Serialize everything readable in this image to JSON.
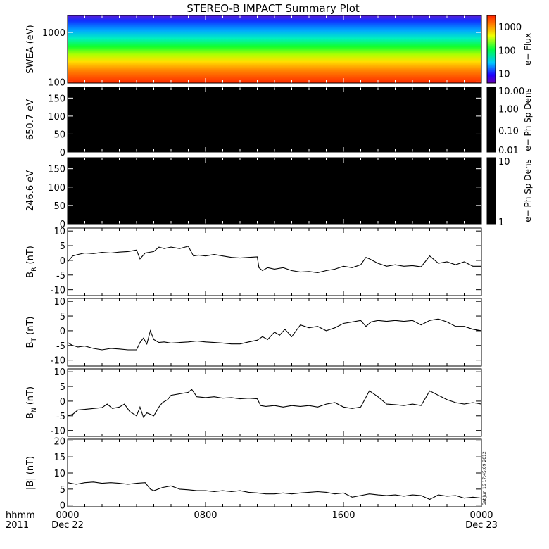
{
  "title": "STEREO-B IMPACT Summary Plot",
  "x_axis": {
    "corner_top": "hhmm",
    "corner_bottom": "2011",
    "tick_labels": [
      "0000",
      "0800",
      "1600",
      "0000"
    ],
    "date_labels": [
      "Dec 22",
      "Dec 23"
    ]
  },
  "timestamp": "Sat Jun 16 17:45:09 2012",
  "chart_data": [
    {
      "id": "swea",
      "type": "heatmap",
      "ylabel": "SWEA (eV)",
      "yscale": "log",
      "ylim": [
        95,
        2200
      ],
      "ytick_labels": [
        "1000",
        "100"
      ],
      "ytick_values": [
        1000,
        100
      ],
      "colorbar": {
        "label": "e− Flux",
        "scale": "log",
        "range": [
          4,
          3000
        ],
        "tick_labels": [
          "1000",
          "100",
          "10"
        ],
        "tick_values": [
          1000,
          100,
          10
        ]
      }
    },
    {
      "id": "pad_650",
      "type": "heatmap",
      "ylabel": "650.7 eV",
      "ylim": [
        0,
        180
      ],
      "ytick_labels": [
        "150",
        "100",
        "50",
        "0"
      ],
      "ytick_values": [
        150,
        100,
        50,
        0
      ],
      "colorbar": {
        "label": "e− Ph Sp Dens",
        "scale": "log",
        "range": [
          0.01,
          10
        ],
        "tick_labels": [
          "10.00",
          "1.00",
          "0.10",
          "0.01"
        ],
        "tick_values": [
          10,
          1,
          0.1,
          0.01
        ]
      }
    },
    {
      "id": "pad_246",
      "type": "heatmap",
      "ylabel": "246.6 eV",
      "ylim": [
        0,
        180
      ],
      "ytick_labels": [
        "150",
        "100",
        "50",
        "0"
      ],
      "ytick_values": [
        150,
        100,
        50,
        0
      ],
      "colorbar": {
        "label": "e− Ph Sp Dens",
        "scale": "log",
        "range": [
          1,
          10
        ],
        "tick_labels": [
          "10",
          "1"
        ],
        "tick_values": [
          10,
          1
        ]
      }
    },
    {
      "id": "br",
      "type": "line",
      "ylabel_main": "B",
      "ylabel_sub": "R",
      "ylabel_unit": " (nT)",
      "ylim": [
        -12,
        11
      ],
      "ytick_labels": [
        "10",
        "5",
        "0",
        "-5",
        "-10"
      ],
      "ytick_values": [
        10,
        5,
        0,
        -5,
        -10
      ],
      "x": [
        0,
        0.3,
        0.6,
        1,
        1.5,
        2,
        2.5,
        3,
        3.5,
        4,
        4.2,
        4.5,
        5,
        5.3,
        5.6,
        6,
        6.5,
        7,
        7.3,
        7.6,
        8,
        8.5,
        9,
        9.5,
        10,
        10.5,
        11,
        11.1,
        11.3,
        11.6,
        12,
        12.5,
        13,
        13.5,
        14,
        14.5,
        15,
        15.5,
        16,
        16.5,
        17,
        17.3,
        17.5,
        18,
        18.5,
        19,
        19.5,
        20,
        20.5,
        21,
        21.5,
        22,
        22.5,
        23,
        23.5,
        24
      ],
      "values": [
        -0.5,
        1.5,
        2,
        2.5,
        2.3,
        2.7,
        2.5,
        2.8,
        3,
        3.5,
        0.5,
        2.5,
        3,
        4.5,
        4,
        4.5,
        4,
        4.8,
        1.5,
        1.8,
        1.5,
        2,
        1.5,
        1,
        0.8,
        1,
        1.2,
        -2.5,
        -3.5,
        -2.5,
        -3,
        -2.5,
        -3.5,
        -4,
        -3.8,
        -4.2,
        -3.5,
        -3,
        -2,
        -2.5,
        -1.5,
        1,
        0.5,
        -1,
        -2,
        -1.5,
        -2,
        -1.8,
        -2.2,
        1.5,
        -1,
        -0.5,
        -1.5,
        -0.5,
        -2,
        -2
      ]
    },
    {
      "id": "bt",
      "type": "line",
      "ylabel_main": "B",
      "ylabel_sub": "T",
      "ylabel_unit": " (nT)",
      "ylim": [
        -12,
        11
      ],
      "ytick_labels": [
        "10",
        "5",
        "0",
        "-5",
        "-10"
      ],
      "ytick_values": [
        10,
        5,
        0,
        -5,
        -10
      ],
      "x": [
        0,
        0.3,
        0.6,
        1,
        1.5,
        2,
        2.5,
        3,
        3.5,
        4,
        4.2,
        4.4,
        4.6,
        4.8,
        5,
        5.3,
        5.6,
        6,
        6.5,
        7,
        7.5,
        8,
        8.5,
        9,
        9.5,
        10,
        10.5,
        11,
        11.3,
        11.6,
        12,
        12.3,
        12.6,
        13,
        13.5,
        14,
        14.5,
        15,
        15.5,
        16,
        16.5,
        17,
        17.3,
        17.6,
        18,
        18.5,
        19,
        19.5,
        20,
        20.5,
        21,
        21.5,
        22,
        22.5,
        23,
        23.5,
        24
      ],
      "values": [
        -4,
        -5,
        -5.5,
        -5.2,
        -6,
        -6.5,
        -6,
        -6.2,
        -6.5,
        -6.5,
        -4,
        -2.5,
        -4.5,
        0,
        -3,
        -4,
        -3.8,
        -4.2,
        -4,
        -3.8,
        -3.5,
        -3.8,
        -4,
        -4.2,
        -4.5,
        -4.5,
        -3.8,
        -3.2,
        -2,
        -3,
        -0.5,
        -1.5,
        0.5,
        -2,
        2,
        1,
        1.5,
        0,
        1,
        2.5,
        3,
        3.5,
        1.5,
        3,
        3.5,
        3.2,
        3.5,
        3.2,
        3.5,
        2,
        3.5,
        4,
        3,
        1.5,
        1.5,
        0.5,
        0
      ]
    },
    {
      "id": "bn",
      "type": "line",
      "ylabel_main": "B",
      "ylabel_sub": "N",
      "ylabel_unit": " (nT)",
      "ylim": [
        -12,
        11
      ],
      "ytick_labels": [
        "10",
        "5",
        "0",
        "-5",
        "-10"
      ],
      "ytick_values": [
        10,
        5,
        0,
        -5,
        -10
      ],
      "x": [
        0,
        0.3,
        0.6,
        1,
        1.5,
        2,
        2.3,
        2.6,
        3,
        3.3,
        3.6,
        4,
        4.2,
        4.4,
        4.6,
        5,
        5.3,
        5.5,
        5.8,
        6,
        6.5,
        7,
        7.2,
        7.5,
        8,
        8.5,
        9,
        9.5,
        10,
        10.5,
        11,
        11.2,
        11.5,
        12,
        12.5,
        13,
        13.5,
        14,
        14.5,
        15,
        15.5,
        16,
        16.5,
        17,
        17.5,
        18,
        18.5,
        19,
        19.5,
        20,
        20.5,
        21,
        21.5,
        22,
        22.5,
        23,
        23.5,
        24
      ],
      "values": [
        -5,
        -4.5,
        -3,
        -2.8,
        -2.5,
        -2.2,
        -1,
        -2.5,
        -2,
        -1,
        -3.5,
        -5,
        -2,
        -5.5,
        -4,
        -5,
        -2,
        -0.5,
        0.5,
        2,
        2.5,
        3,
        4,
        1.5,
        1.2,
        1.5,
        1,
        1.2,
        0.8,
        1,
        0.8,
        -1.5,
        -1.8,
        -1.5,
        -2,
        -1.5,
        -1.8,
        -1.5,
        -2,
        -1,
        -0.5,
        -2,
        -2.5,
        -2,
        3.5,
        1.5,
        -1,
        -1.2,
        -1.5,
        -1,
        -1.5,
        3.5,
        2,
        0.5,
        -0.5,
        -1,
        -0.5,
        -1
      ]
    },
    {
      "id": "bmag",
      "type": "line",
      "ylabel_main": "|B| (nT)",
      "ylim": [
        -0.5,
        20.5
      ],
      "ytick_labels": [
        "20",
        "15",
        "10",
        "5",
        "0"
      ],
      "ytick_values": [
        20,
        15,
        10,
        5,
        0
      ],
      "x": [
        0,
        0.5,
        1,
        1.5,
        2,
        2.5,
        3,
        3.5,
        4,
        4.5,
        4.8,
        5,
        5.5,
        6,
        6.5,
        7,
        7.5,
        8,
        8.5,
        9,
        9.5,
        10,
        10.5,
        11,
        11.5,
        12,
        12.5,
        13,
        13.5,
        14,
        14.5,
        15,
        15.5,
        16,
        16.5,
        17,
        17.5,
        18,
        18.5,
        19,
        19.5,
        20,
        20.5,
        21,
        21.5,
        22,
        22.5,
        23,
        23.5,
        24
      ],
      "values": [
        7,
        6.5,
        7,
        7.2,
        6.8,
        7,
        6.8,
        6.5,
        6.8,
        7,
        5,
        4.5,
        5.5,
        6,
        5,
        4.8,
        4.5,
        4.5,
        4.2,
        4.5,
        4.2,
        4.5,
        4,
        3.8,
        3.5,
        3.5,
        3.8,
        3.5,
        3.8,
        4,
        4.2,
        4,
        3.5,
        3.8,
        2.5,
        3,
        3.5,
        3.2,
        3,
        3.2,
        2.8,
        3.2,
        3,
        1.8,
        3.2,
        2.8,
        3,
        2.2,
        2.5,
        2.2
      ]
    }
  ]
}
